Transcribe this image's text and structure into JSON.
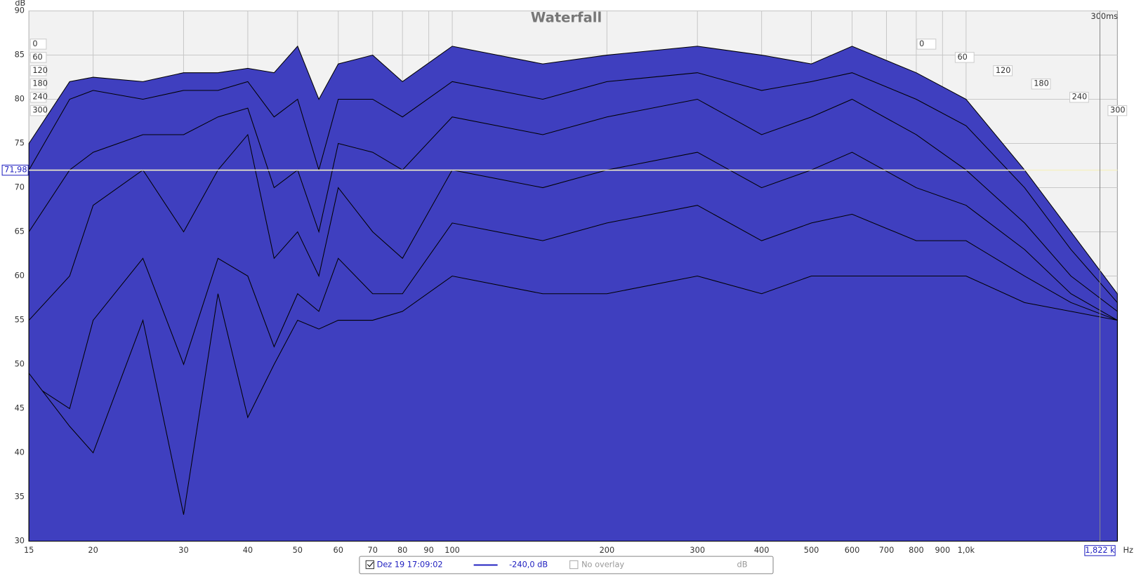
{
  "chart_data": {
    "type": "waterfall",
    "title": "Waterfall",
    "x_unit": "Hz",
    "y_unit": "dB",
    "xlim": [
      15,
      1970
    ],
    "log_x": true,
    "xticks": [
      15,
      20,
      30,
      40,
      50,
      60,
      70,
      80,
      90,
      100,
      200,
      300,
      400,
      500,
      600,
      700,
      800,
      900,
      {
        "value": 1000,
        "label": "1,0k"
      }
    ],
    "ylim": [
      30,
      90
    ],
    "yticks": [
      30,
      35,
      40,
      45,
      50,
      55,
      60,
      65,
      70,
      75,
      80,
      85,
      90
    ],
    "grid": true,
    "zticks": [
      0,
      60,
      120,
      180,
      240,
      300
    ],
    "z_end_label": "300ms",
    "x": [
      15,
      18,
      20,
      25,
      30,
      35,
      40,
      45,
      50,
      55,
      60,
      70,
      80,
      100,
      150,
      200,
      300,
      400,
      500,
      600,
      800,
      1000,
      1300,
      1600,
      1970
    ],
    "fill_color": "#3f3fbf",
    "series": [
      {
        "name": "0",
        "values": [
          75,
          82,
          82.5,
          82,
          83,
          83,
          83.5,
          83,
          86,
          80,
          84,
          85,
          82,
          86,
          84,
          85,
          86,
          85,
          84,
          86,
          83,
          80,
          72,
          65,
          58
        ]
      },
      {
        "name": "60",
        "values": [
          72,
          80,
          81,
          80,
          81,
          81,
          82,
          78,
          80,
          72,
          80,
          80,
          78,
          82,
          80,
          82,
          83,
          81,
          82,
          83,
          80,
          77,
          70,
          63,
          57
        ]
      },
      {
        "name": "120",
        "values": [
          65,
          72,
          74,
          76,
          76,
          78,
          79,
          70,
          72,
          65,
          75,
          74,
          72,
          78,
          76,
          78,
          80,
          76,
          78,
          80,
          76,
          72,
          66,
          60,
          56
        ]
      },
      {
        "name": "180",
        "values": [
          55,
          60,
          68,
          72,
          65,
          72,
          76,
          62,
          65,
          60,
          70,
          65,
          62,
          72,
          70,
          72,
          74,
          70,
          72,
          74,
          70,
          68,
          63,
          58,
          55
        ]
      },
      {
        "name": "240",
        "values": [
          48,
          45,
          55,
          62,
          50,
          62,
          60,
          52,
          58,
          56,
          62,
          58,
          58,
          66,
          64,
          66,
          68,
          64,
          66,
          67,
          64,
          64,
          60,
          57,
          55
        ]
      },
      {
        "name": "300",
        "values": [
          49,
          43,
          40,
          55,
          33,
          58,
          44,
          50,
          55,
          54,
          55,
          55,
          56,
          60,
          58,
          58,
          60,
          58,
          60,
          60,
          60,
          60,
          57,
          56,
          55
        ]
      }
    ],
    "cursor_y": {
      "value": 71.98,
      "label": "71,98"
    },
    "cursor_x": {
      "value": 1822,
      "label": "1,822 k"
    },
    "legend": {
      "measurement": "Dez 19 17:09:02",
      "line_color": "#2020c0",
      "level": "-240,0 dB",
      "overlay": "No overlay",
      "unit": "dB"
    }
  }
}
